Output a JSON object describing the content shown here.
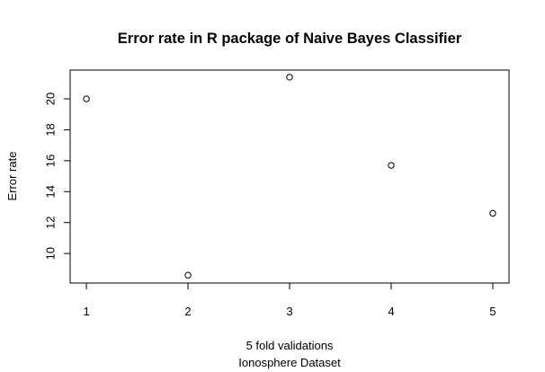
{
  "chart_data": {
    "type": "scatter",
    "title": "Error rate in R package of Naive Bayes Classifier",
    "xlabel": "5 fold validations",
    "xlabel2": "Ionosphere Dataset",
    "ylabel": "Error rate",
    "x": [
      1,
      2,
      3,
      4,
      5
    ],
    "y": [
      20.0,
      8.6,
      21.4,
      15.7,
      12.6
    ],
    "xlim": [
      0.84,
      5.16
    ],
    "ylim": [
      8.09,
      21.86
    ],
    "x_ticks": [
      "1",
      "2",
      "3",
      "4",
      "5"
    ],
    "y_ticks": [
      "10",
      "12",
      "14",
      "16",
      "18",
      "20"
    ],
    "grid": false,
    "legend": "none",
    "marker": "open-circle"
  }
}
